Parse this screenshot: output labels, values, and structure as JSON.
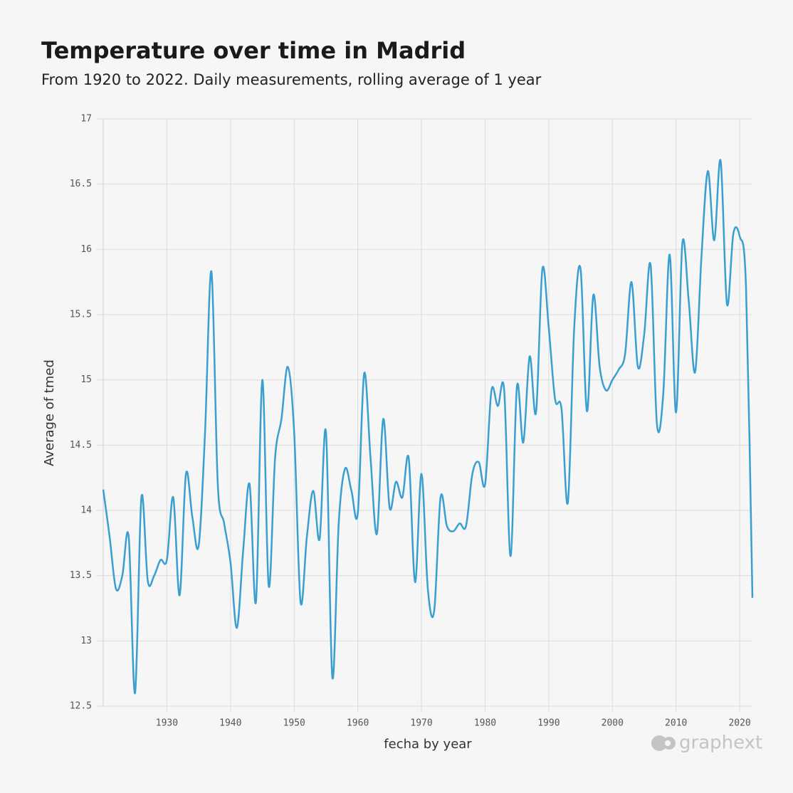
{
  "chart_data": {
    "type": "line",
    "title": "Temperature over time in Madrid",
    "subtitle": "From 1920 to 2022. Daily measurements, rolling average of 1 year",
    "x_label": "fecha by year",
    "y_label": "Average of tmed",
    "watermark": "graphext",
    "x": [
      1920,
      1921,
      1922,
      1923,
      1924,
      1925,
      1926,
      1927,
      1928,
      1929,
      1930,
      1931,
      1932,
      1933,
      1934,
      1935,
      1936,
      1937,
      1938,
      1939,
      1940,
      1941,
      1942,
      1943,
      1944,
      1945,
      1946,
      1947,
      1948,
      1949,
      1950,
      1951,
      1952,
      1953,
      1954,
      1955,
      1956,
      1957,
      1958,
      1959,
      1960,
      1961,
      1962,
      1963,
      1964,
      1965,
      1966,
      1967,
      1968,
      1969,
      1970,
      1971,
      1972,
      1973,
      1974,
      1975,
      1976,
      1977,
      1978,
      1979,
      1980,
      1981,
      1982,
      1983,
      1984,
      1985,
      1986,
      1987,
      1988,
      1989,
      1990,
      1991,
      1992,
      1993,
      1994,
      1995,
      1996,
      1997,
      1998,
      1999,
      2000,
      2001,
      2002,
      2003,
      2004,
      2005,
      2006,
      2007,
      2008,
      2009,
      2010,
      2011,
      2012,
      2013,
      2014,
      2015,
      2016,
      2017,
      2018,
      2019,
      2020,
      2021,
      2022
    ],
    "series": [
      {
        "name": "Average of tmed",
        "color": "#3a9fd0",
        "values": [
          14.16,
          13.8,
          13.4,
          13.5,
          13.8,
          12.6,
          14.1,
          13.46,
          13.5,
          13.62,
          13.62,
          14.1,
          13.35,
          14.28,
          13.95,
          13.73,
          14.6,
          15.83,
          14.2,
          13.9,
          13.6,
          13.1,
          13.7,
          14.2,
          13.3,
          15.0,
          13.42,
          14.4,
          14.7,
          15.1,
          14.6,
          13.3,
          13.8,
          14.15,
          13.78,
          14.6,
          12.72,
          13.9,
          14.32,
          14.15,
          13.98,
          15.05,
          14.4,
          13.82,
          14.7,
          14.02,
          14.22,
          14.1,
          14.4,
          13.45,
          14.28,
          13.4,
          13.23,
          14.1,
          13.88,
          13.84,
          13.9,
          13.88,
          14.28,
          14.37,
          14.2,
          14.92,
          14.8,
          14.92,
          13.65,
          14.95,
          14.52,
          15.18,
          14.75,
          15.85,
          15.4,
          14.85,
          14.78,
          14.06,
          15.4,
          15.85,
          14.76,
          15.65,
          15.1,
          14.92,
          15.0,
          15.08,
          15.2,
          15.75,
          15.1,
          15.35,
          15.88,
          14.66,
          14.9,
          15.96,
          14.75,
          16.05,
          15.6,
          15.06,
          15.95,
          16.6,
          16.07,
          16.68,
          15.58,
          16.12,
          16.1,
          15.7,
          13.33
        ]
      }
    ],
    "xlim": [
      1920,
      2022
    ],
    "xticks": [
      1930,
      1940,
      1950,
      1960,
      1970,
      1980,
      1990,
      2000,
      2010,
      2020
    ],
    "ylim": [
      12.5,
      17
    ],
    "yticks": [
      12.5,
      13,
      13.5,
      14,
      14.5,
      15,
      15.5,
      16,
      16.5,
      17
    ],
    "grid": true
  }
}
